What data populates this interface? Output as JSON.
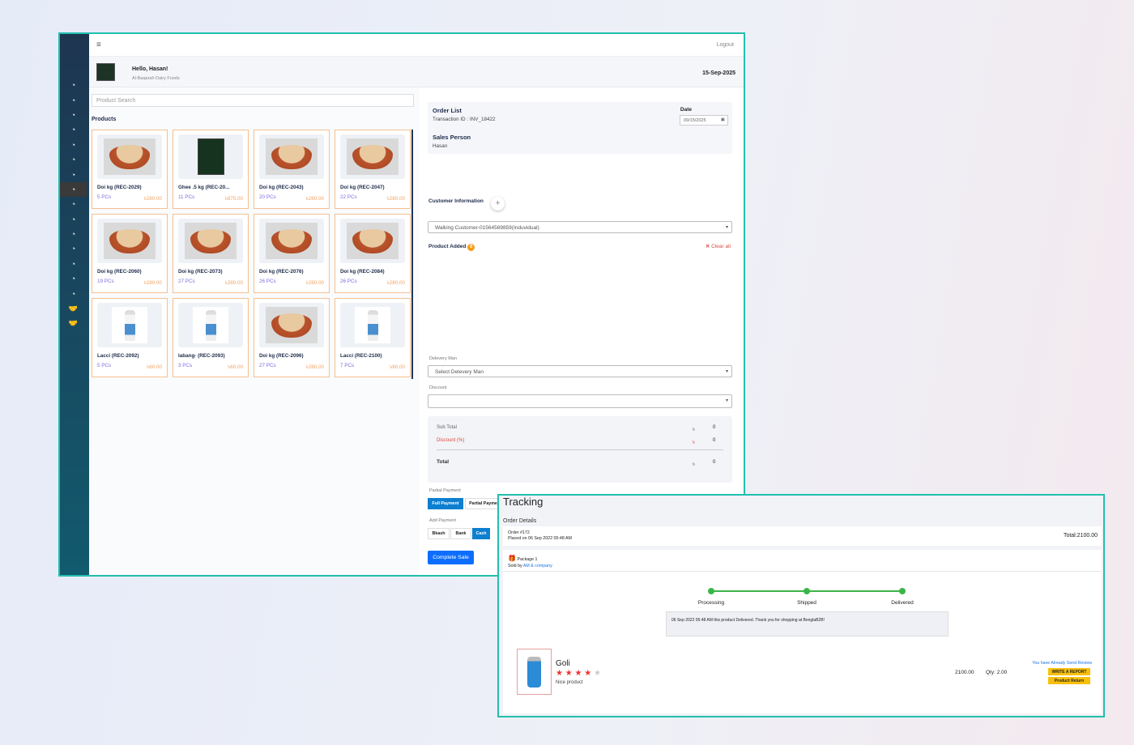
{
  "topbar": {
    "menu_icon": "hamburger-icon",
    "logout": "Logout"
  },
  "header": {
    "greeting": "Hello, Hasan!",
    "company": "Al-Baqarah Dairy Foods",
    "date": "15-Sep-2025"
  },
  "sidebar": {
    "icons": [
      "dashboard",
      "dashboard",
      "dashboard",
      "dashboard",
      "dashboard",
      "dashboard",
      "dashboard",
      "dashboard",
      "dashboard",
      "dashboard",
      "dashboard",
      "dashboard",
      "dashboard",
      "dashboard",
      "dashboard",
      "handshake",
      "handshake"
    ],
    "active_index": 7
  },
  "products": {
    "search_placeholder": "Product Search",
    "title": "Products",
    "items": [
      {
        "name": "Doi kg (REC-2029)",
        "qty": "5 PCs",
        "price": "৳280.00",
        "img": "bowl"
      },
      {
        "name": "Ghee .5 kg (REC-20...",
        "qty": "11 PCs",
        "price": "৳875.00",
        "img": "ghee"
      },
      {
        "name": "Doi kg (REC-2043)",
        "qty": "20 PCs",
        "price": "৳280.00",
        "img": "bowl"
      },
      {
        "name": "Doi kg (REC-2047)",
        "qty": "22 PCs",
        "price": "৳280.00",
        "img": "bowl"
      },
      {
        "name": "Doi kg (REC-2060)",
        "qty": "19 PCs",
        "price": "৳280.00",
        "img": "bowl"
      },
      {
        "name": "Doi kg (REC-2073)",
        "qty": "27 PCs",
        "price": "৳280.00",
        "img": "bowl"
      },
      {
        "name": "Doi kg (REC-2076)",
        "qty": "26 PCs",
        "price": "৳280.00",
        "img": "bowl"
      },
      {
        "name": "Doi kg (REC-2084)",
        "qty": "26 PCs",
        "price": "৳280.00",
        "img": "bowl"
      },
      {
        "name": "Lacci (REC-2092)",
        "qty": "5 PCs",
        "price": "৳60.00",
        "img": "bottle"
      },
      {
        "name": "labang- (REC-2093)",
        "qty": "3 PCs",
        "price": "৳60.00",
        "img": "bottle"
      },
      {
        "name": "Doi kg (REC-2096)",
        "qty": "27 PCs",
        "price": "৳280.00",
        "img": "bowl"
      },
      {
        "name": "Lacci (REC-2100)",
        "qty": "7 PCs",
        "price": "৳60.00",
        "img": "bottle"
      }
    ]
  },
  "order": {
    "title": "Order List",
    "transaction": "Transaction ID : INV_18422",
    "date_label": "Date",
    "date_value": "09/15/2025",
    "sales_person_label": "Sales Person",
    "sales_person": "Hasan",
    "customer_label": "Customer Information",
    "customer": "Walking Customer-01564589859(Induvidual)",
    "product_added": "Product Added",
    "product_count": "0",
    "clear_all": "Clear all",
    "delivery_label": "Delevery Man",
    "delivery_placeholder": "Select Delevery Man",
    "discount_label": "Discount",
    "subtotal_label": "Sub Total",
    "subtotal": "0",
    "discount_pct_label": "Discount (%)",
    "discount": "0",
    "total_label": "Total",
    "total": "0",
    "currency": "৳",
    "partial_label": "Partial Payment",
    "full_payment": "Full Payment",
    "partial_payment": "Partial Payment",
    "add_payment_label": "Add Payment",
    "bkash": "Bkash",
    "bank": "Bank",
    "cash": "Cash",
    "complete": "Complete Sale"
  },
  "tracking": {
    "title": "Tracking",
    "order_details": "Order Details",
    "order_no": "Order #172",
    "placed": "Placed on 06 Sep 2022 05:48 AM",
    "total": "Total:2100.00",
    "package": "Package 1",
    "sold_by": "Sold by",
    "seller": "AM & company",
    "steps": [
      "Processing",
      "Shipped",
      "Delivered"
    ],
    "note": "06 Sep 2022 05:48 AM    this product Delivered. Thank you for shopping at BenglaB2B!",
    "product": "Goli",
    "rating": 4,
    "review": "Nice product",
    "price": "2100.00",
    "qty": "Qty: 2.00",
    "review_sent": "You have Already Send Review",
    "report": "WRITE A REPORT",
    "return": "Product Return",
    "accent": "#3bb54a"
  }
}
